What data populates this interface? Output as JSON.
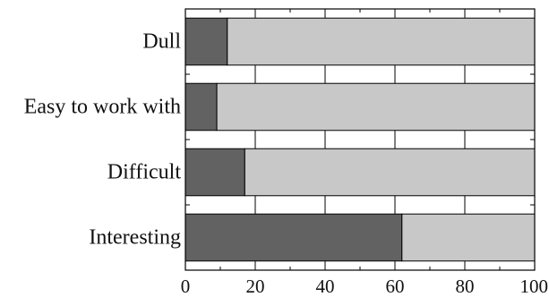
{
  "chart_data": {
    "type": "bar",
    "orientation": "horizontal",
    "stacked": true,
    "title": "",
    "xlabel": "",
    "ylabel": "",
    "xlim": [
      0,
      100
    ],
    "xticks": [
      "0",
      "20",
      "40",
      "60",
      "80",
      "100"
    ],
    "grid": "vertical lines at major ticks",
    "categories": [
      "Dull",
      "Easy to work with",
      "Difficult",
      "Interesting"
    ],
    "series": [
      {
        "color": "#626262",
        "values": [
          12,
          9,
          17,
          62
        ]
      },
      {
        "color": "#c8c8c8",
        "values": [
          88,
          91,
          83,
          38
        ]
      }
    ]
  }
}
